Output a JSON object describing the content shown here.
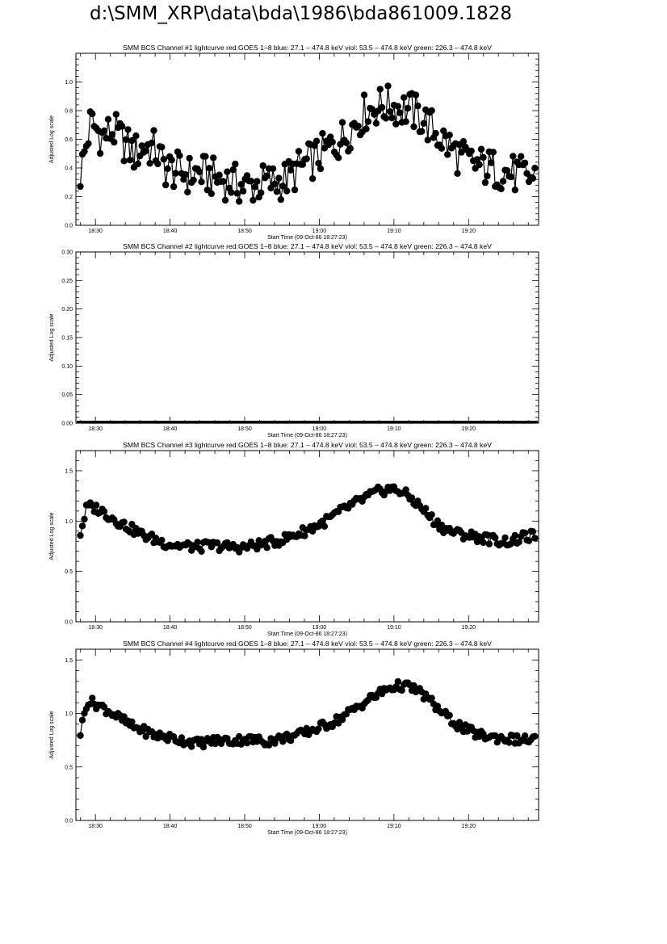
{
  "page": {
    "title": "d:\\SMM_XRP\\data\\bda\\1986\\bda861009.1828"
  },
  "chart_data": [
    {
      "type": "scatter",
      "title": "SMM BCS Channel #1 lightcurve  red:GOES 1–8  blue: 27.1 – 474.8 keV  viol: 53.5 – 474.8 keV  green: 226.3 – 474.8 keV",
      "xlabel": "Start Time (09-Oct-86 18:27:23)",
      "ylabel": "Adjusted Log scale",
      "x_range_min": [
        0,
        62
      ],
      "x_ticks_min": [
        2.617,
        12.617,
        22.617,
        32.617,
        42.617,
        52.617
      ],
      "x_tick_labels": [
        "18:30",
        "18:40",
        "18:50",
        "19:00",
        "19:10",
        "19:20"
      ],
      "ylim": [
        0,
        1.2
      ],
      "y_ticks": [
        0.0,
        0.2,
        0.4,
        0.6,
        0.8,
        1.0
      ],
      "y_tick_labels": [
        "0.0",
        "0.2",
        "0.4",
        "0.6",
        "0.8",
        "1.0"
      ],
      "series": [
        {
          "x_min": [
            0.6,
            2.0,
            3.5,
            5.0,
            6.4,
            7.8,
            9.2,
            10.6,
            12.0,
            13.5,
            15.0,
            16.5,
            18.0,
            19.5,
            21.0,
            22.5,
            24.0,
            25.5,
            27.0,
            28.5,
            30.0,
            31.5,
            33.0,
            34.5,
            36.0,
            37.5,
            39.0,
            40.5,
            42.0,
            43.5,
            45.0,
            46.5,
            48.0,
            49.5,
            51.0,
            52.5,
            54.0,
            55.5,
            57.0,
            58.5,
            60.0,
            61.5
          ],
          "y": [
            0.36,
            0.72,
            0.62,
            0.66,
            0.58,
            0.5,
            0.55,
            0.53,
            0.4,
            0.38,
            0.35,
            0.37,
            0.34,
            0.32,
            0.3,
            0.27,
            0.28,
            0.3,
            0.3,
            0.33,
            0.4,
            0.45,
            0.5,
            0.56,
            0.62,
            0.72,
            0.8,
            0.83,
            0.84,
            0.82,
            0.8,
            0.74,
            0.66,
            0.58,
            0.5,
            0.44,
            0.42,
            0.4,
            0.38,
            0.36,
            0.34,
            0.33
          ]
        }
      ]
    },
    {
      "type": "scatter",
      "title": "SMM BCS Channel #2 lightcurve  red:GOES 1–8  blue: 27.1 – 474.8 keV  viol: 53.5 – 474.8 keV  green: 226.3 – 474.8 keV",
      "xlabel": "Start Time (09-Oct-86 18:27:23)",
      "ylabel": "Adjusted Log scale",
      "x_range_min": [
        0,
        62
      ],
      "x_ticks_min": [
        2.617,
        12.617,
        22.617,
        32.617,
        42.617,
        52.617
      ],
      "x_tick_labels": [
        "18:30",
        "18:40",
        "18:50",
        "19:00",
        "19:10",
        "19:20"
      ],
      "ylim": [
        0,
        0.3
      ],
      "y_ticks": [
        0.0,
        0.05,
        0.1,
        0.15,
        0.2,
        0.25,
        0.3
      ],
      "y_tick_labels": [
        "0.00",
        "0.05",
        "0.10",
        "0.15",
        "0.20",
        "0.25",
        "0.30"
      ],
      "series": [
        {
          "x_min": [
            0.6,
            5.0,
            10.0,
            15.0,
            20.0,
            25.0,
            30.0,
            35.0,
            40.0,
            45.0,
            50.0,
            55.0,
            60.0,
            61.5
          ],
          "y": [
            0,
            0,
            0,
            0,
            0,
            0,
            0,
            0,
            0,
            0,
            0,
            0,
            0,
            0
          ]
        }
      ]
    },
    {
      "type": "scatter",
      "title": "SMM BCS Channel #3 lightcurve  red:GOES 1–8  blue: 27.1 – 474.8 keV  viol: 53.5 – 474.8 keV  green: 226.3 – 474.8 keV",
      "xlabel": "Start Time (09-Oct-86 18:27:23)",
      "ylabel": "Adjusted Log scale",
      "x_range_min": [
        0,
        62
      ],
      "x_ticks_min": [
        2.617,
        12.617,
        22.617,
        32.617,
        42.617,
        52.617
      ],
      "x_tick_labels": [
        "18:30",
        "18:40",
        "18:50",
        "19:00",
        "19:10",
        "19:20"
      ],
      "ylim": [
        0,
        1.7
      ],
      "y_ticks": [
        0.0,
        0.5,
        1.0,
        1.5
      ],
      "y_tick_labels": [
        "0.0",
        "0.5",
        "1.0",
        "1.5"
      ],
      "series": [
        {
          "x_min": [
            0.6,
            1.5,
            3.0,
            4.5,
            6.0,
            7.5,
            9.0,
            10.5,
            12.0,
            13.5,
            15.0,
            16.5,
            18.0,
            19.5,
            21.0,
            22.5,
            24.0,
            25.5,
            27.0,
            28.5,
            30.0,
            31.5,
            33.0,
            34.5,
            36.0,
            37.5,
            39.0,
            40.5,
            42.0,
            43.5,
            45.0,
            46.5,
            48.0,
            49.5,
            51.0,
            52.5,
            54.0,
            55.5,
            57.0,
            58.5,
            60.0,
            61.5
          ],
          "y": [
            0.88,
            1.15,
            1.12,
            1.05,
            0.98,
            0.92,
            0.86,
            0.82,
            0.78,
            0.76,
            0.75,
            0.74,
            0.76,
            0.75,
            0.74,
            0.74,
            0.76,
            0.78,
            0.8,
            0.84,
            0.88,
            0.93,
            0.98,
            1.05,
            1.12,
            1.18,
            1.24,
            1.29,
            1.32,
            1.3,
            1.22,
            1.12,
            1.0,
            0.92,
            0.88,
            0.86,
            0.84,
            0.82,
            0.8,
            0.8,
            0.84,
            0.86
          ]
        }
      ]
    },
    {
      "type": "scatter",
      "title": "SMM BCS Channel #4 lightcurve  red:GOES 1–8  blue: 27.1 – 474.8 keV  viol: 53.5 – 474.8 keV  green: 226.3 – 474.8 keV",
      "xlabel": "Start Time (09-Oct-86 18:27:23)",
      "ylabel": "Adjusted Log scale",
      "x_range_min": [
        0,
        62
      ],
      "x_ticks_min": [
        2.617,
        12.617,
        22.617,
        32.617,
        42.617,
        52.617
      ],
      "x_tick_labels": [
        "18:30",
        "18:40",
        "18:50",
        "19:00",
        "19:10",
        "19:20"
      ],
      "ylim": [
        0,
        1.6
      ],
      "y_ticks": [
        0.0,
        0.5,
        1.0,
        1.5
      ],
      "y_tick_labels": [
        "0.0",
        "0.5",
        "1.0",
        "1.5"
      ],
      "series": [
        {
          "x_min": [
            0.6,
            1.5,
            3.0,
            4.5,
            6.0,
            7.5,
            9.0,
            10.5,
            12.0,
            13.5,
            15.0,
            16.5,
            18.0,
            19.5,
            21.0,
            22.5,
            24.0,
            25.5,
            27.0,
            28.5,
            30.0,
            31.5,
            33.0,
            34.5,
            36.0,
            37.5,
            39.0,
            40.5,
            42.0,
            43.5,
            45.0,
            46.5,
            48.0,
            49.5,
            51.0,
            52.5,
            54.0,
            55.5,
            57.0,
            58.5,
            60.0,
            61.5
          ],
          "y": [
            0.82,
            1.12,
            1.08,
            1.02,
            0.95,
            0.88,
            0.84,
            0.8,
            0.78,
            0.76,
            0.74,
            0.72,
            0.74,
            0.75,
            0.74,
            0.76,
            0.75,
            0.74,
            0.76,
            0.78,
            0.8,
            0.84,
            0.88,
            0.92,
            0.98,
            1.05,
            1.12,
            1.18,
            1.24,
            1.26,
            1.24,
            1.18,
            1.08,
            0.98,
            0.9,
            0.84,
            0.8,
            0.78,
            0.77,
            0.76,
            0.75,
            0.76
          ]
        }
      ]
    }
  ]
}
